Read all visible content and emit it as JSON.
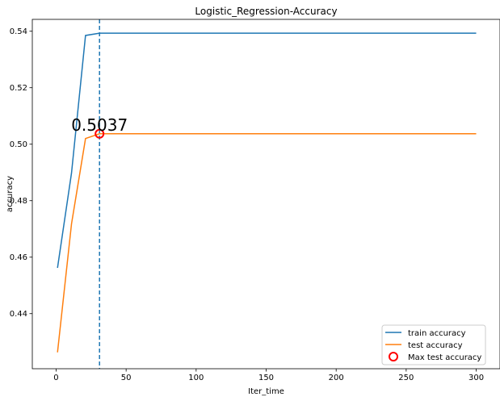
{
  "chart_data": {
    "type": "line",
    "title": "Logistic_Regression-Accuracy",
    "xlabel": "Iter_time",
    "ylabel": "accuracy",
    "xlim": [
      -17,
      317
    ],
    "ylim": [
      0.4205,
      0.5442
    ],
    "xticks": [
      0,
      50,
      100,
      150,
      200,
      250,
      300
    ],
    "yticks": [
      0.44,
      0.46,
      0.48,
      0.5,
      0.52,
      0.54
    ],
    "ytick_labels": [
      "0.44",
      "0.46",
      "0.48",
      "0.50",
      "0.52",
      "0.54"
    ],
    "grid": false,
    "legend_position": "lower-right",
    "series": [
      {
        "name": "train accuracy",
        "color": "#1f77b4",
        "x": [
          1,
          11,
          21,
          31,
          300
        ],
        "y": [
          0.4562,
          0.4898,
          0.5385,
          0.5393,
          0.5393
        ]
      },
      {
        "name": "test accuracy",
        "color": "#ff7f0e",
        "x": [
          1,
          11,
          21,
          31,
          300
        ],
        "y": [
          0.4263,
          0.4718,
          0.502,
          0.5037,
          0.5037
        ]
      }
    ],
    "marker": {
      "name": "Max test accuracy",
      "x": 31,
      "y": 0.5037,
      "color": "#ff0000"
    },
    "vline": {
      "x": 31,
      "color": "#1f77b4",
      "style": "dashed"
    },
    "annotation": {
      "text": "0.5037",
      "x": 31,
      "y": 0.5037
    }
  }
}
